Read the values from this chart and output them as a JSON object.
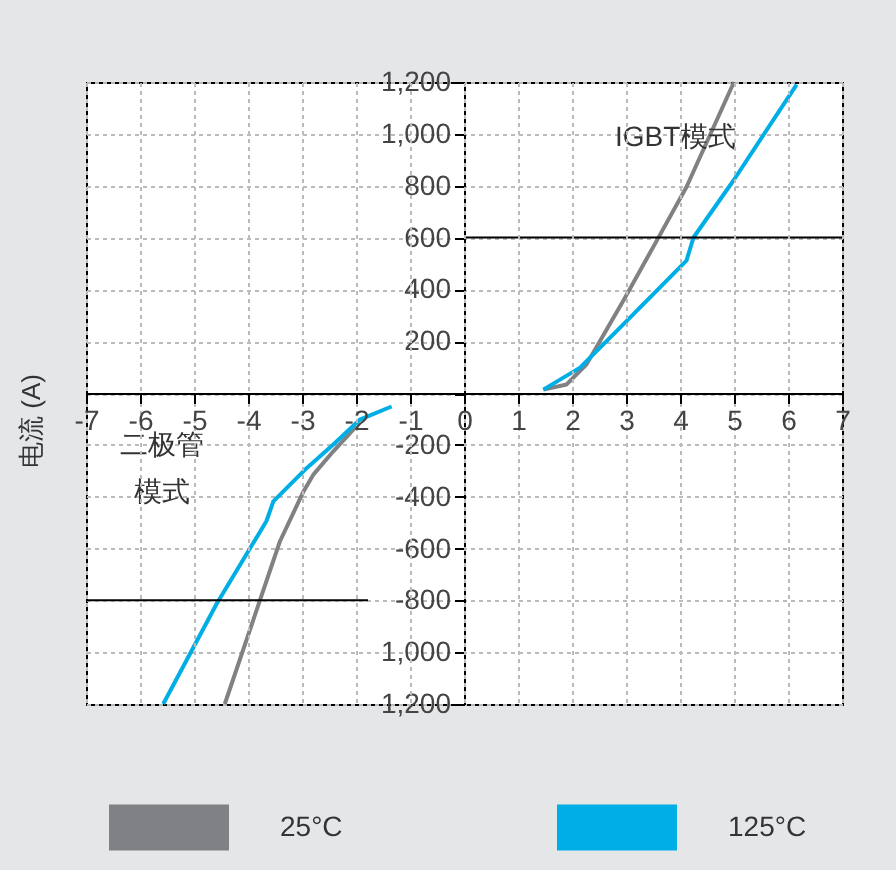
{
  "chart_data": {
    "type": "line",
    "ylabel": "电流 (A)",
    "xlim": [
      -7,
      7
    ],
    "xticks": [
      -7,
      -6,
      -5,
      -4,
      -3,
      -2,
      -1,
      0,
      1,
      2,
      3,
      4,
      5,
      6,
      7
    ],
    "ylim": [
      -1200,
      1200
    ],
    "yticks": [
      {
        "value": -1200,
        "label": "1,200"
      },
      {
        "value": -1000,
        "label": "1,000"
      },
      -800,
      -600,
      -400,
      -200,
      {
        "value": 0,
        "label": null
      },
      200,
      400,
      600,
      800,
      {
        "value": 1000,
        "label": "1,000"
      },
      {
        "value": 1200,
        "label": "1,200"
      }
    ],
    "grid": true,
    "legend": "bottom",
    "line_style": "solid",
    "marker": "none",
    "series": [
      {
        "name": "25°C",
        "color": "#808184",
        "x": [
          -4.43,
          -3.8,
          -3.41,
          -2.97,
          -2.79,
          -2.42,
          -2.0,
          null,
          1.47,
          1.9,
          2.27,
          2.95,
          3.57,
          4.12,
          5.0
        ],
        "values": [
          -1200,
          -813,
          -573,
          -379,
          -315,
          -225,
          -130,
          null,
          13,
          33,
          111,
          356,
          588,
          795,
          1200
        ]
      },
      {
        "name": "125°C",
        "color": "#00aee6",
        "x": [
          -5.57,
          -4.58,
          -3.66,
          -3.53,
          -2.91,
          -2.42,
          -1.93,
          -1.34,
          null,
          1.47,
          2.15,
          2.95,
          4.12,
          4.25,
          4.99,
          6.16
        ],
        "values": [
          -1200,
          -813,
          -495,
          -418,
          -289,
          -199,
          -103,
          -52,
          null,
          13,
          98,
          265,
          511,
          600,
          820,
          1190
        ]
      }
    ],
    "ref_lines": [
      {
        "axis": "y",
        "value": 600,
        "color": "#000000"
      },
      {
        "axis": "y",
        "value": -800,
        "color": "#000000"
      }
    ],
    "annotations": [
      "IGBT模式",
      "二极管",
      "模式"
    ]
  }
}
